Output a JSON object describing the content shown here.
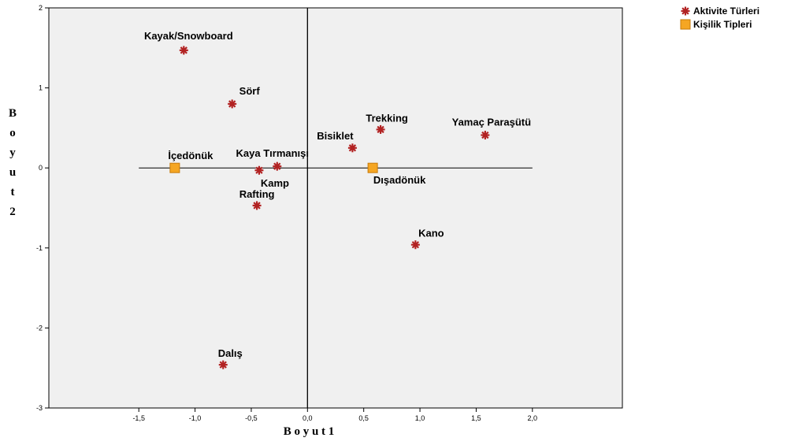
{
  "chart_data": {
    "type": "scatter",
    "xlabel": "B o y u t 1",
    "ylabel": "B o y u t 2",
    "xlim": [
      -2.3,
      2.8
    ],
    "ylim": [
      -3,
      2
    ],
    "x_ticks": [
      "-1,5",
      "-1,0",
      "-0,5",
      "0,0",
      "0,5",
      "1,0",
      "1,5",
      "2,0"
    ],
    "y_ticks": [
      "2",
      "1",
      "0",
      "-1",
      "-2",
      "-3"
    ],
    "grid": false,
    "background": "#f0f0f0",
    "reference_lines": {
      "vertical_at_x": 0,
      "horizontal_at_y": 0,
      "horizontal_range": [
        -1.5,
        2.0
      ]
    },
    "legend": {
      "position": "top-right",
      "entries": [
        "Aktivite Türleri",
        "Kişilik Tipleri"
      ]
    },
    "series": [
      {
        "name": "Aktivite Türleri",
        "marker": "asterisk",
        "color": "#b22222",
        "points": [
          {
            "label": "Kayak/Snowboard",
            "x": -1.1,
            "y": 1.47
          },
          {
            "label": "Sörf",
            "x": -0.67,
            "y": 0.8
          },
          {
            "label": "Trekking",
            "x": 0.65,
            "y": 0.48
          },
          {
            "label": "Yamaç Paraşütü",
            "x": 1.58,
            "y": 0.41
          },
          {
            "label": "Bisiklet",
            "x": 0.4,
            "y": 0.25
          },
          {
            "label": "Kaya Tırmanışı",
            "x": -0.27,
            "y": 0.02
          },
          {
            "label": "Kamp",
            "x": -0.43,
            "y": -0.03
          },
          {
            "label": "Rafting",
            "x": -0.45,
            "y": -0.47
          },
          {
            "label": "Kano",
            "x": 0.96,
            "y": -0.96
          },
          {
            "label": "Dalış",
            "x": -0.75,
            "y": -2.46
          }
        ]
      },
      {
        "name": "Kişilik Tipleri",
        "marker": "square",
        "color": "#f5a623",
        "points": [
          {
            "label": "İçedönük",
            "x": -1.18,
            "y": 0.0
          },
          {
            "label": "Dışadönük",
            "x": 0.58,
            "y": 0.0
          }
        ]
      }
    ]
  }
}
